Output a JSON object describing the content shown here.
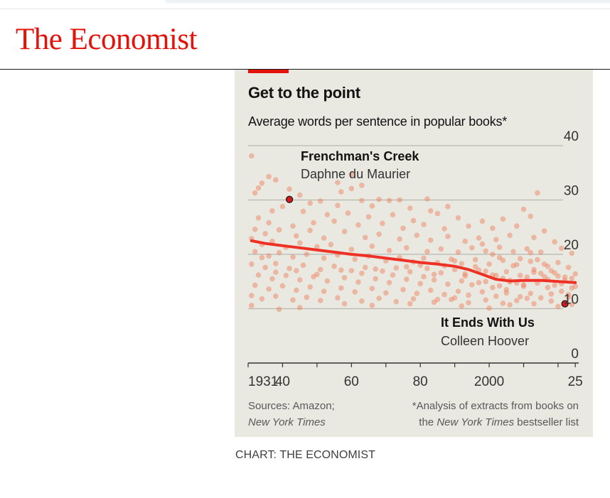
{
  "masthead": {
    "logo": "The Economist"
  },
  "chart_data": {
    "type": "scatter",
    "title": "Get to the point",
    "subtitle": "Average words per sentence in popular books*",
    "xlabel": "",
    "ylabel": "",
    "x_ticks": [
      "1931",
      "40",
      "60",
      "80",
      "2000",
      "25"
    ],
    "x_tick_values": [
      1931,
      1940,
      1960,
      1980,
      2000,
      2025
    ],
    "y_ticks": [
      "0",
      "10",
      "20",
      "30",
      "40"
    ],
    "y_tick_values": [
      0,
      10,
      20,
      30,
      40
    ],
    "xlim": [
      1930,
      2026
    ],
    "ylim": [
      0,
      40
    ],
    "series": [
      {
        "name": "Trend",
        "type": "line",
        "x": [
          1931,
          1935,
          1940,
          1945,
          1950,
          1955,
          1960,
          1965,
          1970,
          1975,
          1980,
          1985,
          1990,
          1994,
          1998,
          2002,
          2006,
          2010,
          2015,
          2020,
          2025
        ],
        "y": [
          22.5,
          22.0,
          21.6,
          21.2,
          20.8,
          20.4,
          20.0,
          19.7,
          19.3,
          18.9,
          18.5,
          18.2,
          17.8,
          17.2,
          16.3,
          15.4,
          15.1,
          15.2,
          15.2,
          15.0,
          14.8
        ]
      }
    ],
    "highlights": [
      {
        "name": "Frenchman's Creek",
        "author": "Daphne du Maurier",
        "x": 1942,
        "y": 30.1
      },
      {
        "name": "It Ends With Us",
        "author": "Colleen Hoover",
        "x": 2022,
        "y": 10.9
      }
    ],
    "points": [
      [
        1931,
        38.1
      ],
      [
        1932,
        31.3
      ],
      [
        1933,
        32.2
      ],
      [
        1934,
        33.1
      ],
      [
        1936,
        34.3
      ],
      [
        1938,
        33.7
      ],
      [
        1942,
        32.0
      ],
      [
        1960,
        34.7
      ],
      [
        1956,
        33.2
      ],
      [
        1963,
        32.7
      ],
      [
        1957,
        31.5
      ],
      [
        1960,
        32.1
      ],
      [
        1968,
        30.1
      ],
      [
        1974,
        30.0
      ],
      [
        1982,
        30.2
      ],
      [
        2014,
        31.3
      ],
      [
        1945,
        30.9
      ],
      [
        1948,
        29.4
      ],
      [
        1951,
        29.8
      ],
      [
        1956,
        29.0
      ],
      [
        1963,
        29.9
      ],
      [
        1966,
        28.9
      ],
      [
        1971,
        29.9
      ],
      [
        1977,
        28.5
      ],
      [
        1983,
        28.0
      ],
      [
        1988,
        28.8
      ],
      [
        2010,
        28.3
      ],
      [
        1937,
        28.0
      ],
      [
        1940,
        28.8
      ],
      [
        1946,
        27.9
      ],
      [
        1953,
        27.3
      ],
      [
        1959,
        27.6
      ],
      [
        1965,
        26.9
      ],
      [
        1972,
        27.3
      ],
      [
        1978,
        26.2
      ],
      [
        1985,
        27.5
      ],
      [
        1991,
        26.7
      ],
      [
        1998,
        26.1
      ],
      [
        2004,
        26.5
      ],
      [
        2012,
        27.0
      ],
      [
        1933,
        26.7
      ],
      [
        1936,
        25.8
      ],
      [
        1943,
        25.2
      ],
      [
        1949,
        25.8
      ],
      [
        1955,
        26.1
      ],
      [
        1962,
        25.4
      ],
      [
        1969,
        25.7
      ],
      [
        1975,
        24.8
      ],
      [
        1981,
        25.5
      ],
      [
        1987,
        24.7
      ],
      [
        1994,
        25.2
      ],
      [
        2001,
        24.8
      ],
      [
        2008,
        25.2
      ],
      [
        2016,
        24.3
      ],
      [
        1932,
        24.6
      ],
      [
        1935,
        23.8
      ],
      [
        1939,
        24.5
      ],
      [
        1944,
        23.4
      ],
      [
        1948,
        24.4
      ],
      [
        1952,
        23.0
      ],
      [
        1958,
        24.2
      ],
      [
        1964,
        23.1
      ],
      [
        1968,
        23.7
      ],
      [
        1974,
        22.8
      ],
      [
        1979,
        23.5
      ],
      [
        1983,
        22.6
      ],
      [
        1988,
        23.3
      ],
      [
        1993,
        22.4
      ],
      [
        1997,
        23.0
      ],
      [
        2002,
        22.7
      ],
      [
        2006,
        23.5
      ],
      [
        2013,
        23.1
      ],
      [
        2019,
        22.3
      ],
      [
        1931,
        22.9
      ],
      [
        1934,
        21.8
      ],
      [
        1937,
        22.4
      ],
      [
        1941,
        21.3
      ],
      [
        1945,
        22.1
      ],
      [
        1950,
        21.4
      ],
      [
        1954,
        21.8
      ],
      [
        1960,
        20.9
      ],
      [
        1966,
        21.5
      ],
      [
        1971,
        20.7
      ],
      [
        1976,
        21.2
      ],
      [
        1982,
        20.5
      ],
      [
        1986,
        21.0
      ],
      [
        1991,
        20.4
      ],
      [
        1995,
        21.2
      ],
      [
        1999,
        20.6
      ],
      [
        2003,
        21.3
      ],
      [
        2007,
        20.5
      ],
      [
        2011,
        21.0
      ],
      [
        2015,
        20.4
      ],
      [
        2021,
        21.1
      ],
      [
        2024,
        20.2
      ],
      [
        1932,
        20.5
      ],
      [
        1936,
        19.7
      ],
      [
        1939,
        20.3
      ],
      [
        1943,
        19.5
      ],
      [
        1947,
        20.0
      ],
      [
        1952,
        19.3
      ],
      [
        1956,
        19.9
      ],
      [
        1961,
        19.1
      ],
      [
        1965,
        19.7
      ],
      [
        1970,
        18.8
      ],
      [
        1974,
        19.4
      ],
      [
        1978,
        18.6
      ],
      [
        1981,
        19.3
      ],
      [
        1985,
        18.5
      ],
      [
        1989,
        19.1
      ],
      [
        1992,
        18.3
      ],
      [
        1996,
        19.0
      ],
      [
        2000,
        18.2
      ],
      [
        2004,
        18.9
      ],
      [
        2008,
        18.1
      ],
      [
        2012,
        18.7
      ],
      [
        2017,
        17.8
      ],
      [
        2020,
        18.5
      ],
      [
        2023,
        17.6
      ],
      [
        1931,
        18.2
      ],
      [
        1935,
        17.6
      ],
      [
        1938,
        18.3
      ],
      [
        1942,
        17.4
      ],
      [
        1946,
        18.0
      ],
      [
        1951,
        17.2
      ],
      [
        1955,
        17.8
      ],
      [
        1960,
        17.0
      ],
      [
        1964,
        17.6
      ],
      [
        1969,
        16.9
      ],
      [
        1973,
        17.5
      ],
      [
        1977,
        16.8
      ],
      [
        1982,
        17.4
      ],
      [
        1986,
        16.6
      ],
      [
        1990,
        17.2
      ],
      [
        1993,
        16.4
      ],
      [
        1997,
        17.1
      ],
      [
        2001,
        16.2
      ],
      [
        2005,
        16.8
      ],
      [
        2009,
        16.1
      ],
      [
        2013,
        16.7
      ],
      [
        2016,
        15.9
      ],
      [
        2019,
        16.6
      ],
      [
        2022,
        15.8
      ],
      [
        2025,
        16.4
      ],
      [
        1933,
        16.2
      ],
      [
        1937,
        15.5
      ],
      [
        1941,
        16.1
      ],
      [
        1945,
        15.3
      ],
      [
        1949,
        15.9
      ],
      [
        1953,
        15.1
      ],
      [
        1958,
        15.7
      ],
      [
        1962,
        14.9
      ],
      [
        1967,
        15.5
      ],
      [
        1971,
        14.8
      ],
      [
        1976,
        15.4
      ],
      [
        1980,
        14.6
      ],
      [
        1984,
        15.3
      ],
      [
        1988,
        14.5
      ],
      [
        1992,
        15.1
      ],
      [
        1995,
        14.4
      ],
      [
        1999,
        15.0
      ],
      [
        2003,
        14.2
      ],
      [
        2006,
        14.9
      ],
      [
        2010,
        14.1
      ],
      [
        2014,
        14.7
      ],
      [
        2017,
        13.9
      ],
      [
        2021,
        14.6
      ],
      [
        2024,
        13.8
      ],
      [
        1932,
        14.3
      ],
      [
        1936,
        13.6
      ],
      [
        1940,
        14.2
      ],
      [
        1944,
        13.4
      ],
      [
        1948,
        14.0
      ],
      [
        1952,
        13.2
      ],
      [
        1957,
        13.8
      ],
      [
        1961,
        13.1
      ],
      [
        1966,
        13.7
      ],
      [
        1970,
        12.9
      ],
      [
        1975,
        13.5
      ],
      [
        1979,
        12.8
      ],
      [
        1983,
        13.4
      ],
      [
        1987,
        12.6
      ],
      [
        1991,
        13.2
      ],
      [
        1994,
        12.5
      ],
      [
        1998,
        13.1
      ],
      [
        2002,
        12.3
      ],
      [
        2005,
        12.9
      ],
      [
        2009,
        12.2
      ],
      [
        2012,
        12.8
      ],
      [
        2015,
        12.0
      ],
      [
        2018,
        12.7
      ],
      [
        2023,
        12.1
      ],
      [
        1931,
        12.4
      ],
      [
        1934,
        11.8
      ],
      [
        1938,
        12.3
      ],
      [
        1943,
        11.6
      ],
      [
        1947,
        12.1
      ],
      [
        1951,
        11.5
      ],
      [
        1956,
        12.0
      ],
      [
        1963,
        11.4
      ],
      [
        1968,
        11.9
      ],
      [
        1973,
        11.3
      ],
      [
        1978,
        11.8
      ],
      [
        1984,
        11.2
      ],
      [
        1989,
        11.7
      ],
      [
        1994,
        11.1
      ],
      [
        1999,
        11.6
      ],
      [
        2004,
        11.0
      ],
      [
        2008,
        11.5
      ],
      [
        2013,
        10.9
      ],
      [
        2018,
        11.4
      ],
      [
        2024,
        10.8
      ],
      [
        1931,
        10.6
      ],
      [
        1945,
        10.2
      ],
      [
        1958,
        10.9
      ],
      [
        1992,
        10.5
      ],
      [
        2006,
        10.7
      ],
      [
        2020,
        10.4
      ],
      [
        1939,
        9.9
      ],
      [
        2000,
        10.1
      ],
      [
        1998,
        21.9
      ],
      [
        2001,
        20.0
      ],
      [
        2003,
        19.4
      ],
      [
        1996,
        17.7
      ],
      [
        1999,
        16.9
      ],
      [
        2002,
        16.1
      ],
      [
        2004,
        15.6
      ],
      [
        2006,
        15.2
      ],
      [
        2008,
        14.7
      ],
      [
        2010,
        14.4
      ],
      [
        2011,
        15.8
      ],
      [
        2013,
        17.2
      ],
      [
        2015,
        16.5
      ],
      [
        2017,
        15.4
      ],
      [
        2019,
        14.3
      ],
      [
        2021,
        13.2
      ],
      [
        2023,
        12.6
      ],
      [
        2025,
        14.1
      ],
      [
        2007,
        17.9
      ],
      [
        2009,
        19.2
      ],
      [
        2012,
        20.3
      ],
      [
        2014,
        19.0
      ],
      [
        2016,
        18.2
      ],
      [
        2018,
        17.0
      ],
      [
        2020,
        16.0
      ],
      [
        2022,
        15.2
      ],
      [
        2024,
        15.6
      ],
      [
        2005,
        13.5
      ],
      [
        2001,
        13.9
      ],
      [
        1997,
        14.8
      ],
      [
        1993,
        16.0
      ],
      [
        1990,
        18.8
      ],
      [
        1987,
        17.9
      ],
      [
        1984,
        16.3
      ],
      [
        1981,
        15.9
      ],
      [
        1980,
        18.0
      ],
      [
        1976,
        17.7
      ],
      [
        1972,
        16.2
      ],
      [
        1967,
        17.3
      ],
      [
        1963,
        16.5
      ],
      [
        1957,
        17.1
      ],
      [
        1950,
        16.3
      ],
      [
        1944,
        17.0
      ],
      [
        1938,
        16.7
      ],
      [
        1934,
        19.4
      ],
      [
        1990,
        12.0
      ],
      [
        1985,
        11.7
      ],
      [
        1977,
        10.9
      ],
      [
        1966,
        10.6
      ],
      [
        2011,
        11.9
      ]
    ],
    "notes": {
      "sources_label": "Sources: Amazon;",
      "sources_italic": "New York Times",
      "footnote_line1": "*Analysis of extracts from books on",
      "footnote_pre": "the ",
      "footnote_italic": "New York Times",
      "footnote_post": " bestseller list"
    }
  },
  "credit": "CHART: THE ECONOMIST",
  "colors": {
    "brand_red": "#e3120b",
    "dot": "#f0734d",
    "trend": "#ee3124",
    "panel": "#e9e9e1"
  }
}
